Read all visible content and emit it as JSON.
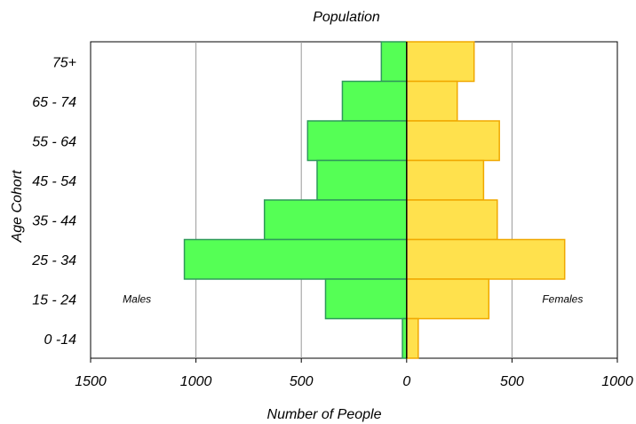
{
  "chart_data": {
    "type": "bar",
    "orientation": "horizontal",
    "layout": "population-pyramid",
    "title": "Population",
    "xlabel": "Number of People",
    "ylabel": "Age Cohort",
    "categories": [
      "75+",
      "65 - 74",
      "55 - 64",
      "45 - 54",
      "35 - 44",
      "25 - 34",
      "15 - 24",
      "0 -14"
    ],
    "series": [
      {
        "side": "left",
        "color": "#55ff55",
        "edge": "#2e9a5a",
        "values": [
          120,
          305,
          470,
          425,
          675,
          1055,
          385,
          20
        ]
      },
      {
        "side": "right",
        "color": "#ffe14d",
        "edge": "#f0a800",
        "values": [
          320,
          240,
          440,
          365,
          430,
          750,
          390,
          55
        ]
      }
    ],
    "xlim": [
      -1500,
      1000
    ],
    "x_ticks": [
      -1500,
      -1000,
      -500,
      0,
      500,
      1000
    ],
    "x_tick_labels": [
      "1500",
      "1000",
      "500",
      "0",
      "500",
      "1000"
    ],
    "annotations": [
      {
        "text": "Males",
        "x": -1280,
        "category": "15 - 24"
      },
      {
        "text": "Females",
        "x": 740,
        "category": "15 - 24"
      }
    ],
    "grid": "vertical",
    "legend": "none"
  }
}
